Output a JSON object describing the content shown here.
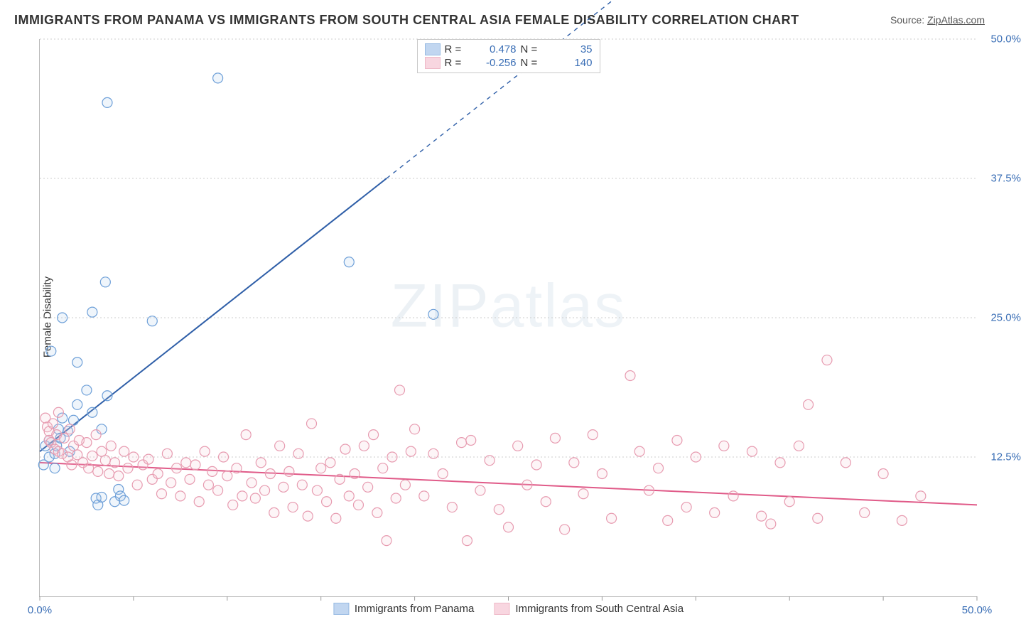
{
  "title": "IMMIGRANTS FROM PANAMA VS IMMIGRANTS FROM SOUTH CENTRAL ASIA FEMALE DISABILITY CORRELATION CHART",
  "source_label": "Source: ",
  "source_name": "ZipAtlas.com",
  "ylabel": "Female Disability",
  "watermark": "ZIPatlas",
  "chart": {
    "type": "scatter",
    "xlim": [
      0,
      50
    ],
    "ylim": [
      0,
      50
    ],
    "x_tick_labels": [
      "0.0%",
      "50.0%"
    ],
    "x_tick_positions": [
      0,
      50
    ],
    "y_tick_labels": [
      "12.5%",
      "25.0%",
      "37.5%",
      "50.0%"
    ],
    "y_tick_positions": [
      12.5,
      25.0,
      37.5,
      50.0
    ],
    "x_minor_tick_step": 5,
    "background_color": "#ffffff",
    "grid_color": "#cccccc",
    "axis_color": "#bbbbbb",
    "tick_label_color": "#3b6fb6",
    "marker_radius": 7,
    "marker_stroke_width": 1.2,
    "marker_fill_opacity": 0.18,
    "line_width": 2
  },
  "series": [
    {
      "id": "panama",
      "label": "Immigrants from Panama",
      "color": "#6d9fd8",
      "fill": "#a7c6ea",
      "line_color": "#2f5fa8",
      "R": "0.478",
      "N": "35",
      "trend": {
        "x1": 0,
        "y1": 13.0,
        "x2": 18.5,
        "y2": 37.5,
        "dash_from_x": 18.5
      },
      "points": [
        [
          0.3,
          13.5
        ],
        [
          0.5,
          14.0
        ],
        [
          0.5,
          12.5
        ],
        [
          0.8,
          12.8
        ],
        [
          0.9,
          13.5
        ],
        [
          1.0,
          15.0
        ],
        [
          1.1,
          14.2
        ],
        [
          1.2,
          16.0
        ],
        [
          1.5,
          14.8
        ],
        [
          1.6,
          13.0
        ],
        [
          1.8,
          15.8
        ],
        [
          2.0,
          17.2
        ],
        [
          2.0,
          21.0
        ],
        [
          2.5,
          18.5
        ],
        [
          2.8,
          16.5
        ],
        [
          3.0,
          8.8
        ],
        [
          3.1,
          8.2
        ],
        [
          3.3,
          8.9
        ],
        [
          3.3,
          15.0
        ],
        [
          3.5,
          28.2
        ],
        [
          3.6,
          18.0
        ],
        [
          4.0,
          8.5
        ],
        [
          4.2,
          9.6
        ],
        [
          4.3,
          9.0
        ],
        [
          4.5,
          8.6
        ],
        [
          0.6,
          22.0
        ],
        [
          1.2,
          25.0
        ],
        [
          2.8,
          25.5
        ],
        [
          3.6,
          44.3
        ],
        [
          6.0,
          24.7
        ],
        [
          9.5,
          46.5
        ],
        [
          16.5,
          30.0
        ],
        [
          21.0,
          25.3
        ],
        [
          0.2,
          11.8
        ],
        [
          0.8,
          11.5
        ]
      ]
    },
    {
      "id": "south_central_asia",
      "label": "Immigrants from South Central Asia",
      "color": "#e79bb0",
      "fill": "#f6c6d3",
      "line_color": "#e05a88",
      "R": "-0.256",
      "N": "140",
      "trend": {
        "x1": 0,
        "y1": 12.0,
        "x2": 50,
        "y2": 8.2,
        "dash_from_x": null
      },
      "points": [
        [
          0.3,
          16.0
        ],
        [
          0.4,
          15.2
        ],
        [
          0.5,
          14.8
        ],
        [
          0.5,
          14.0
        ],
        [
          0.6,
          13.8
        ],
        [
          0.7,
          15.5
        ],
        [
          0.8,
          13.2
        ],
        [
          0.9,
          14.5
        ],
        [
          1.0,
          13.0
        ],
        [
          1.0,
          16.5
        ],
        [
          1.2,
          12.8
        ],
        [
          1.3,
          14.2
        ],
        [
          1.5,
          12.5
        ],
        [
          1.6,
          15.0
        ],
        [
          1.7,
          11.8
        ],
        [
          1.8,
          13.5
        ],
        [
          2.0,
          12.7
        ],
        [
          2.1,
          14.0
        ],
        [
          2.3,
          12.0
        ],
        [
          2.5,
          13.8
        ],
        [
          2.6,
          11.5
        ],
        [
          2.8,
          12.6
        ],
        [
          3.0,
          14.5
        ],
        [
          3.1,
          11.2
        ],
        [
          3.3,
          13.0
        ],
        [
          3.5,
          12.2
        ],
        [
          3.7,
          11.0
        ],
        [
          3.8,
          13.5
        ],
        [
          4.0,
          12.0
        ],
        [
          4.2,
          10.8
        ],
        [
          4.5,
          13.0
        ],
        [
          4.7,
          11.5
        ],
        [
          5.0,
          12.5
        ],
        [
          5.2,
          10.0
        ],
        [
          5.5,
          11.8
        ],
        [
          5.8,
          12.3
        ],
        [
          6.0,
          10.5
        ],
        [
          6.3,
          11.0
        ],
        [
          6.5,
          9.2
        ],
        [
          6.8,
          12.8
        ],
        [
          7.0,
          10.2
        ],
        [
          7.3,
          11.5
        ],
        [
          7.5,
          9.0
        ],
        [
          7.8,
          12.0
        ],
        [
          8.0,
          10.5
        ],
        [
          8.3,
          11.8
        ],
        [
          8.5,
          8.5
        ],
        [
          8.8,
          13.0
        ],
        [
          9.0,
          10.0
        ],
        [
          9.2,
          11.2
        ],
        [
          9.5,
          9.5
        ],
        [
          9.8,
          12.5
        ],
        [
          10.0,
          10.8
        ],
        [
          10.3,
          8.2
        ],
        [
          10.5,
          11.5
        ],
        [
          10.8,
          9.0
        ],
        [
          11.0,
          14.5
        ],
        [
          11.3,
          10.2
        ],
        [
          11.5,
          8.8
        ],
        [
          11.8,
          12.0
        ],
        [
          12.0,
          9.5
        ],
        [
          12.3,
          11.0
        ],
        [
          12.5,
          7.5
        ],
        [
          12.8,
          13.5
        ],
        [
          13.0,
          9.8
        ],
        [
          13.3,
          11.2
        ],
        [
          13.5,
          8.0
        ],
        [
          13.8,
          12.8
        ],
        [
          14.0,
          10.0
        ],
        [
          14.3,
          7.2
        ],
        [
          14.5,
          15.5
        ],
        [
          14.8,
          9.5
        ],
        [
          15.0,
          11.5
        ],
        [
          15.3,
          8.5
        ],
        [
          15.5,
          12.0
        ],
        [
          15.8,
          7.0
        ],
        [
          16.0,
          10.5
        ],
        [
          16.3,
          13.2
        ],
        [
          16.5,
          9.0
        ],
        [
          16.8,
          11.0
        ],
        [
          17.0,
          8.2
        ],
        [
          17.3,
          13.5
        ],
        [
          17.5,
          9.8
        ],
        [
          17.8,
          14.5
        ],
        [
          18.0,
          7.5
        ],
        [
          18.3,
          11.5
        ],
        [
          18.5,
          5.0
        ],
        [
          18.8,
          12.5
        ],
        [
          19.0,
          8.8
        ],
        [
          19.2,
          18.5
        ],
        [
          19.5,
          10.0
        ],
        [
          19.8,
          13.0
        ],
        [
          20.0,
          15.0
        ],
        [
          20.5,
          9.0
        ],
        [
          21.0,
          12.8
        ],
        [
          21.5,
          11.0
        ],
        [
          22.0,
          8.0
        ],
        [
          22.5,
          13.8
        ],
        [
          22.8,
          5.0
        ],
        [
          23.0,
          14.0
        ],
        [
          23.5,
          9.5
        ],
        [
          24.0,
          12.2
        ],
        [
          24.5,
          7.8
        ],
        [
          25.0,
          6.2
        ],
        [
          25.5,
          13.5
        ],
        [
          26.0,
          10.0
        ],
        [
          26.5,
          11.8
        ],
        [
          27.0,
          8.5
        ],
        [
          27.5,
          14.2
        ],
        [
          28.0,
          6.0
        ],
        [
          28.5,
          12.0
        ],
        [
          29.0,
          9.2
        ],
        [
          29.5,
          14.5
        ],
        [
          30.0,
          11.0
        ],
        [
          30.5,
          7.0
        ],
        [
          31.5,
          19.8
        ],
        [
          32.0,
          13.0
        ],
        [
          32.5,
          9.5
        ],
        [
          33.0,
          11.5
        ],
        [
          33.5,
          6.8
        ],
        [
          34.0,
          14.0
        ],
        [
          34.5,
          8.0
        ],
        [
          35.0,
          12.5
        ],
        [
          36.0,
          7.5
        ],
        [
          36.5,
          13.5
        ],
        [
          37.0,
          9.0
        ],
        [
          38.0,
          13.0
        ],
        [
          38.5,
          7.2
        ],
        [
          39.0,
          6.5
        ],
        [
          39.5,
          12.0
        ],
        [
          40.0,
          8.5
        ],
        [
          40.5,
          13.5
        ],
        [
          41.0,
          17.2
        ],
        [
          41.5,
          7.0
        ],
        [
          42.0,
          21.2
        ],
        [
          43.0,
          12.0
        ],
        [
          44.0,
          7.5
        ],
        [
          45.0,
          11.0
        ],
        [
          46.0,
          6.8
        ],
        [
          47.0,
          9.0
        ]
      ]
    }
  ],
  "legend_top_labels": {
    "R": "R =",
    "N": "N ="
  }
}
